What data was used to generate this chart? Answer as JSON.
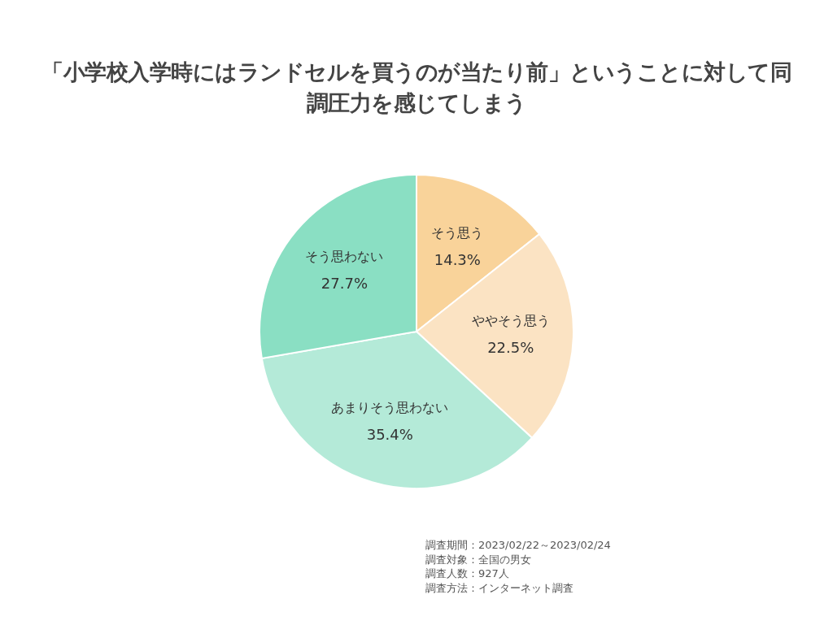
{
  "chart_data": {
    "type": "pie",
    "title": "「小学校入学時にはランドセルを買うのが当たり前」ということに対して同調圧力を感じてしまう",
    "categories": [
      "そう思う",
      "ややそう思う",
      "あまりそう思わない",
      "そう思わない"
    ],
    "values": [
      14.3,
      22.5,
      35.4,
      27.7
    ],
    "colors": [
      "#f9d39a",
      "#fbe3c3",
      "#b4ead8",
      "#8adfc3"
    ],
    "value_labels": [
      "14.3%",
      "22.5%",
      "35.4%",
      "27.7%"
    ],
    "annotations": [
      "調査期間：2023/02/22～2023/02/24",
      "調査対象：全国の男女",
      "調査人数：927人",
      "調査方法：インターネット調査"
    ]
  }
}
